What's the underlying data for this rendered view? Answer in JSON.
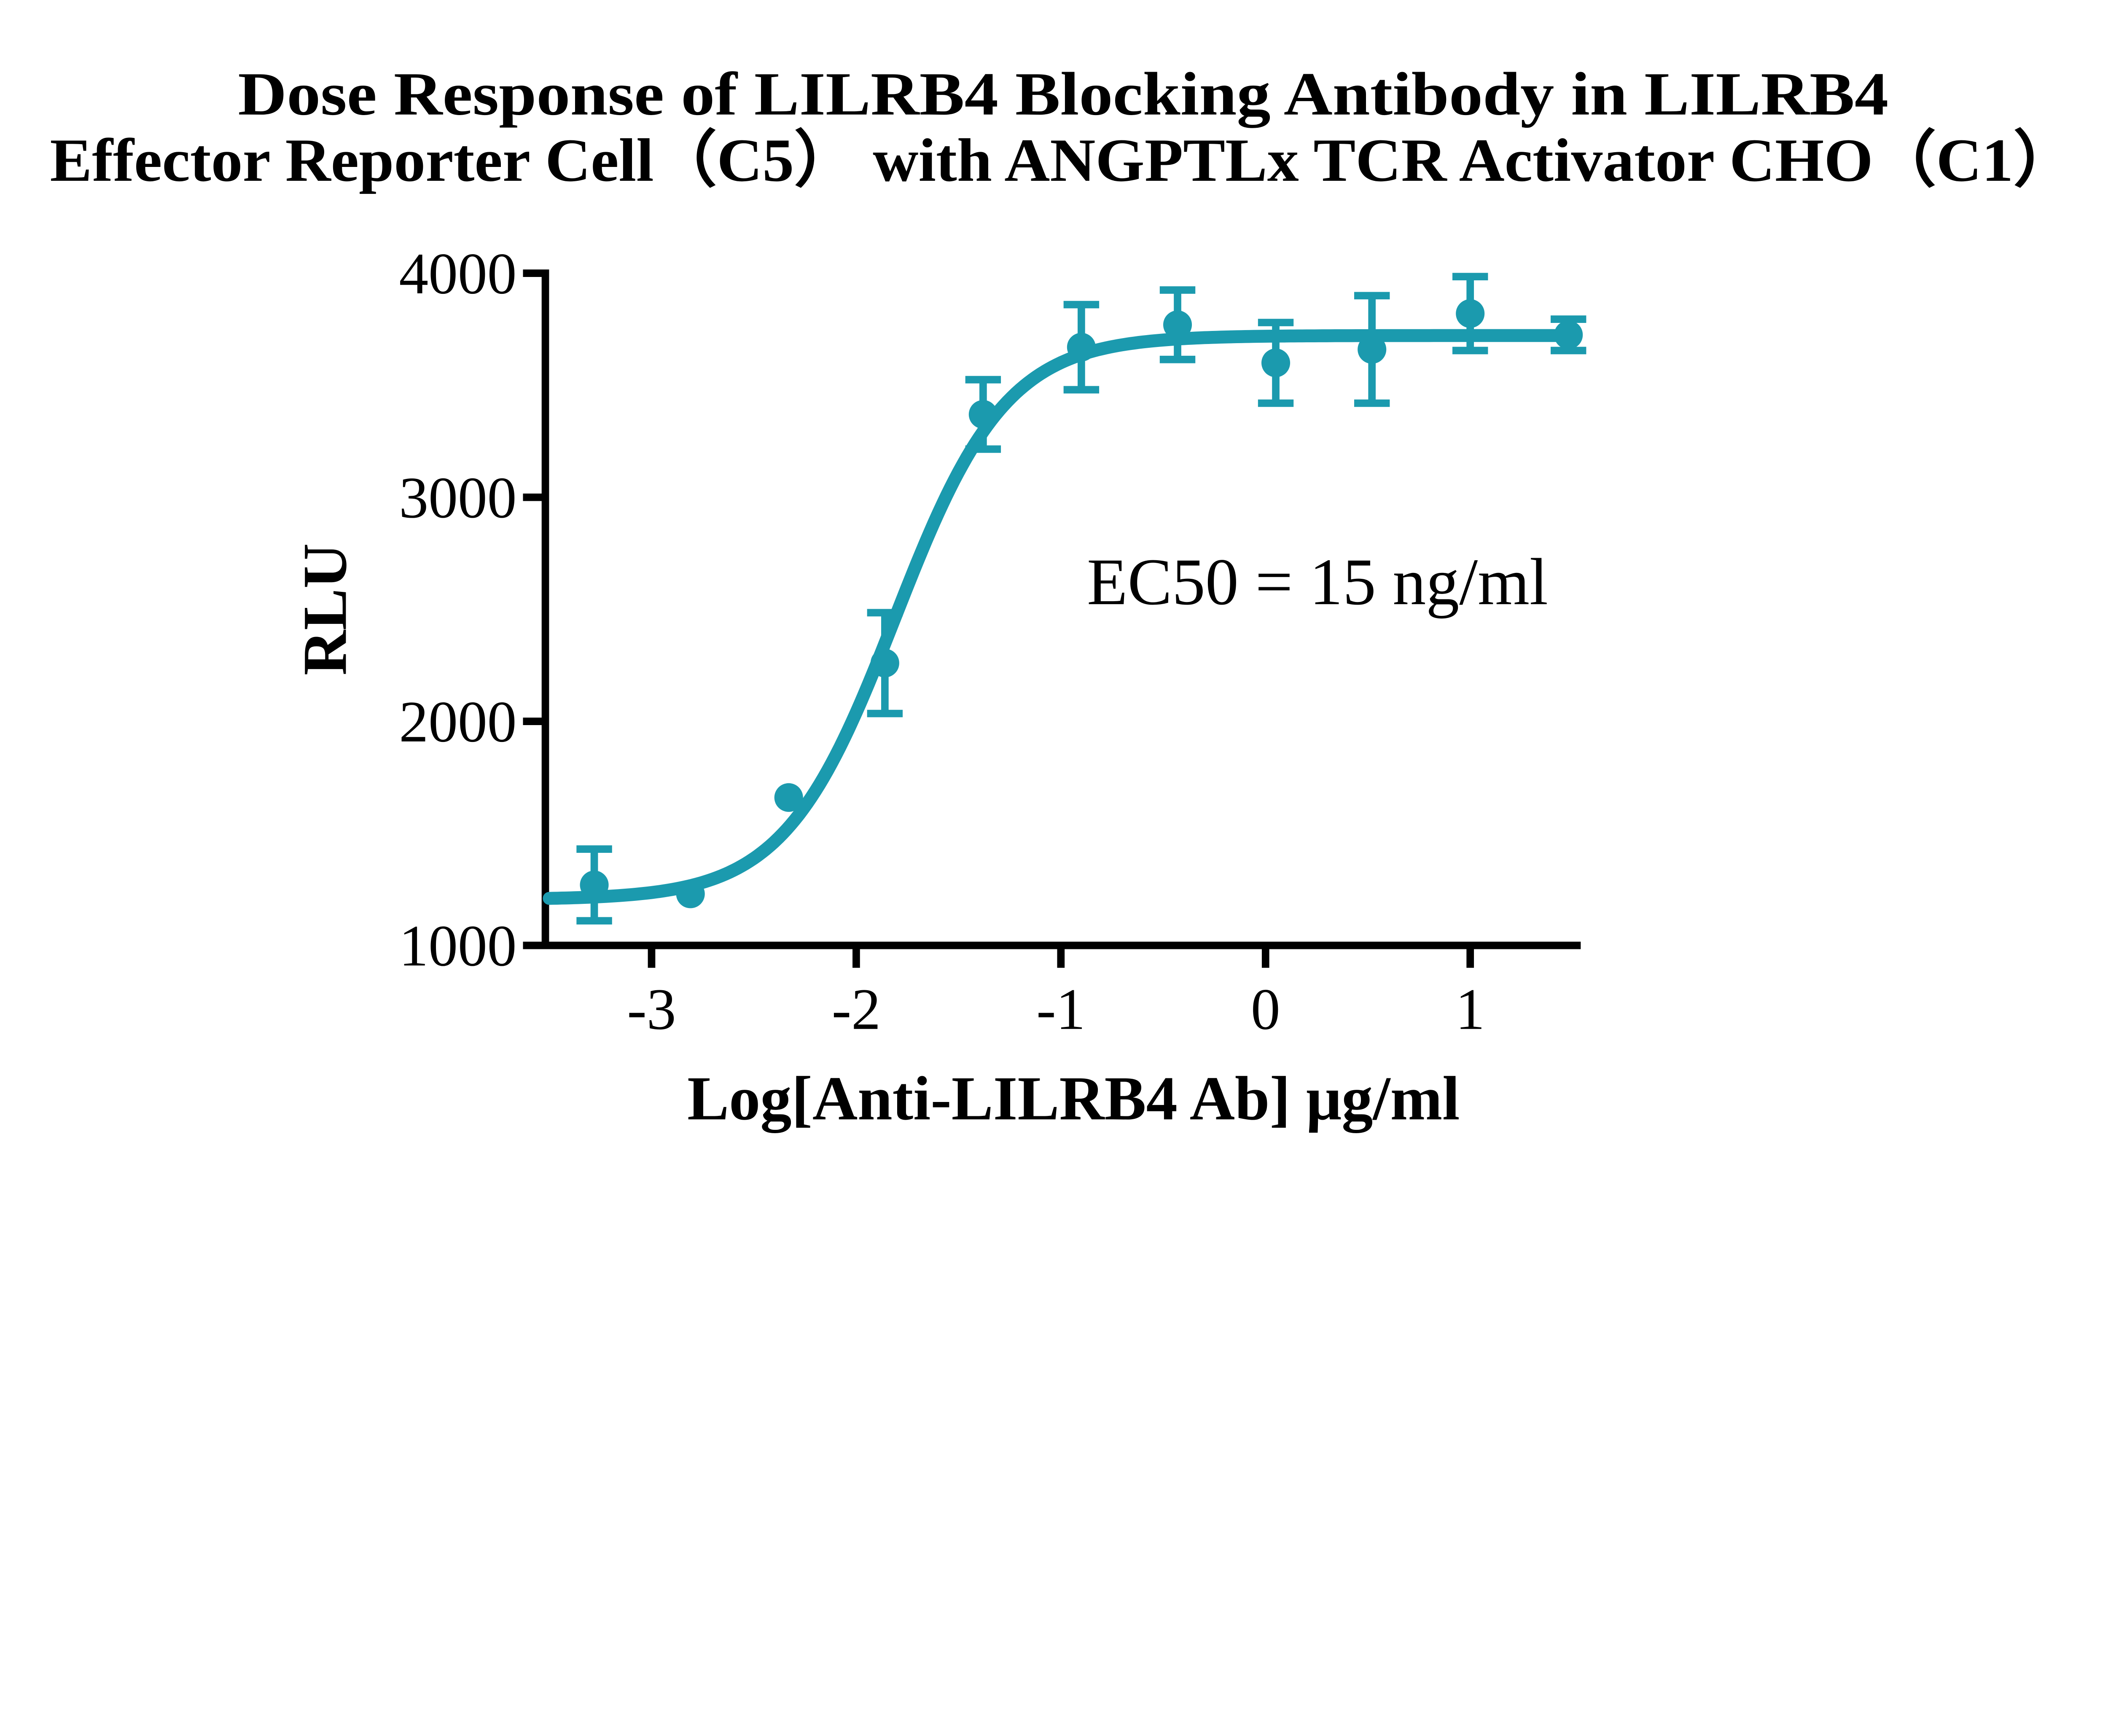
{
  "title": {
    "line1": "Dose Response of LILRB4 Blocking Antibody in LILRB4",
    "line2": "Effector Reporter Cell（C5） with ANGPTLx TCR Activator CHO（C1）"
  },
  "chart_data": {
    "type": "scatter",
    "title": "Dose Response of LILRB4 Blocking Antibody in LILRB4 Effector Reporter Cell（C5） with ANGPTLx TCR Activator CHO（C1）",
    "xlabel": "Log[Anti-LILRB4 Ab] μg/ml",
    "ylabel": "RLU",
    "annotation": "EC50 = 15 ng/ml",
    "xlim": [
      -3.52,
      1.54
    ],
    "ylim": [
      1000,
      4000
    ],
    "x_ticks": [
      -3,
      -2,
      -1,
      0,
      1
    ],
    "y_ticks": [
      1000,
      2000,
      3000,
      4000
    ],
    "grid": false,
    "legend": "none",
    "series": [
      {
        "name": "Anti-LILRB4 Ab",
        "color": "#1B9AAE",
        "marker": "circle",
        "points": [
          {
            "log_conc": -3.28,
            "rlu": 1270,
            "sd": 160
          },
          {
            "log_conc": -2.81,
            "rlu": 1230,
            "sd": 0
          },
          {
            "log_conc": -2.33,
            "rlu": 1660,
            "sd": 0
          },
          {
            "log_conc": -1.86,
            "rlu": 2260,
            "sd": 225
          },
          {
            "log_conc": -1.38,
            "rlu": 3370,
            "sd": 155
          },
          {
            "log_conc": -0.9,
            "rlu": 3670,
            "sd": 190
          },
          {
            "log_conc": -0.43,
            "rlu": 3770,
            "sd": 155
          },
          {
            "log_conc": 0.05,
            "rlu": 3600,
            "sd": 180
          },
          {
            "log_conc": 0.52,
            "rlu": 3660,
            "sd": 240
          },
          {
            "log_conc": 1.0,
            "rlu": 3820,
            "sd": 165
          },
          {
            "log_conc": 1.48,
            "rlu": 3725,
            "sd": 70
          }
        ],
        "fit": {
          "model": "four-parameter logistic",
          "bottom": 1205,
          "top": 3722,
          "log_ec50": -1.81,
          "hill_slope": 1.6,
          "curve_x_range": [
            -3.5,
            1.51
          ]
        },
        "ec50": "15 ng/ml"
      }
    ]
  },
  "colors": {
    "accent": "#1B9AAE",
    "axis": "#000000",
    "text": "#000000",
    "background": "#FFFFFF"
  }
}
